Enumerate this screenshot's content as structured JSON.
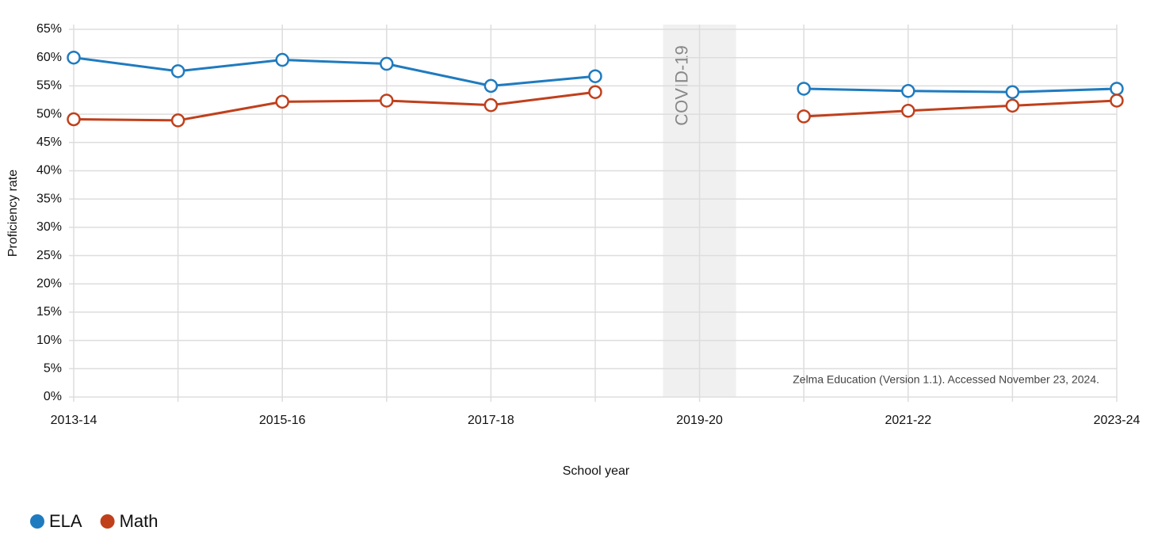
{
  "chart_data": {
    "type": "line",
    "x_label": "School year",
    "y_label": "Proficiency rate",
    "categories": [
      "2013-14",
      null,
      "2015-16",
      null,
      "2017-18",
      null,
      "2019-20",
      null,
      "2021-22",
      null,
      "2023-24"
    ],
    "series": [
      {
        "name": "ELA",
        "color": "#1f7bbf",
        "values": [
          60,
          57.6,
          59.6,
          58.9,
          55,
          56.7,
          null,
          54.5,
          54.1,
          53.9,
          54.5
        ]
      },
      {
        "name": "Math",
        "color": "#c0401c",
        "values": [
          49.1,
          48.9,
          52.2,
          52.4,
          51.6,
          53.9,
          null,
          49.6,
          50.6,
          51.5,
          52.4
        ]
      }
    ],
    "ylim": [
      0,
      65
    ],
    "yticks": [
      {
        "value": 0,
        "label": "0%"
      },
      {
        "value": 5,
        "label": "5%"
      },
      {
        "value": 10,
        "label": "10%"
      },
      {
        "value": 15,
        "label": "15%"
      },
      {
        "value": 20,
        "label": "20%"
      },
      {
        "value": 25,
        "label": "25%"
      },
      {
        "value": 30,
        "label": "30%"
      },
      {
        "value": 35,
        "label": "35%"
      },
      {
        "value": 40,
        "label": "40%"
      },
      {
        "value": 45,
        "label": "45%"
      },
      {
        "value": 50,
        "label": "50%"
      },
      {
        "value": 55,
        "label": "55%"
      },
      {
        "value": 60,
        "label": "60%"
      },
      {
        "value": 65,
        "label": "65%"
      }
    ],
    "grid": true,
    "legend": "bottom-left",
    "annotations": [
      {
        "text": "COVID-19",
        "x": "2019-20"
      }
    ],
    "source": "Zelma Education (Version 1.1). Accessed November 23, 2024."
  }
}
